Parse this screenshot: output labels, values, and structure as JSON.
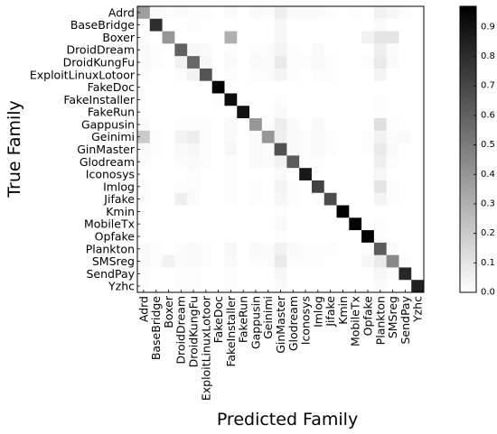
{
  "chart_data": {
    "type": "heatmap",
    "title": "",
    "xlabel": "Predicted Family",
    "ylabel": "True Family",
    "categories": [
      "Adrd",
      "BaseBridge",
      "Boxer",
      "DroidDream",
      "DroidKungFu",
      "ExploitLinuxLotoor",
      "FakeDoc",
      "FakeInstaller",
      "FakeRun",
      "Gappusin",
      "Geinimi",
      "GinMaster",
      "Glodream",
      "Iconosys",
      "Imlog",
      "Jifake",
      "Kmin",
      "MobileTx",
      "Opfake",
      "Plankton",
      "SMSreg",
      "SendPay",
      "Yzhc"
    ],
    "colorbar": {
      "min": 0.0,
      "max": 0.97,
      "ticks": [
        "0.0",
        "0.1",
        "0.2",
        "0.3",
        "0.4",
        "0.5",
        "0.6",
        "0.7",
        "0.8",
        "0.9"
      ]
    },
    "colormap": [
      "#ffffff",
      "#000000"
    ],
    "values": [
      [
        0.37,
        0.02,
        0.01,
        0.02,
        0.01,
        0.01,
        0.0,
        0.02,
        0.0,
        0.02,
        0.01,
        0.06,
        0.02,
        0.02,
        0.02,
        0.01,
        0.0,
        0.01,
        0.0,
        0.05,
        0.03,
        0.01,
        0.0
      ],
      [
        0.0,
        0.8,
        0.0,
        0.0,
        0.01,
        0.0,
        0.0,
        0.0,
        0.0,
        0.0,
        0.0,
        0.03,
        0.0,
        0.0,
        0.0,
        0.0,
        0.0,
        0.0,
        0.0,
        0.02,
        0.0,
        0.0,
        0.0
      ],
      [
        0.01,
        0.0,
        0.4,
        0.0,
        0.0,
        0.0,
        0.0,
        0.3,
        0.0,
        0.0,
        0.0,
        0.03,
        0.0,
        0.0,
        0.0,
        0.0,
        0.0,
        0.0,
        0.05,
        0.1,
        0.1,
        0.0,
        0.0
      ],
      [
        0.02,
        0.01,
        0.0,
        0.6,
        0.03,
        0.02,
        0.0,
        0.01,
        0.0,
        0.01,
        0.01,
        0.04,
        0.01,
        0.0,
        0.02,
        0.0,
        0.0,
        0.0,
        0.0,
        0.06,
        0.01,
        0.0,
        0.0
      ],
      [
        0.02,
        0.01,
        0.0,
        0.05,
        0.58,
        0.03,
        0.0,
        0.02,
        0.0,
        0.02,
        0.01,
        0.08,
        0.01,
        0.01,
        0.02,
        0.01,
        0.0,
        0.0,
        0.01,
        0.08,
        0.02,
        0.0,
        0.0
      ],
      [
        0.01,
        0.0,
        0.0,
        0.01,
        0.05,
        0.65,
        0.0,
        0.01,
        0.0,
        0.01,
        0.01,
        0.04,
        0.01,
        0.0,
        0.01,
        0.01,
        0.0,
        0.0,
        0.0,
        0.04,
        0.0,
        0.0,
        0.0
      ],
      [
        0.0,
        0.0,
        0.0,
        0.0,
        0.0,
        0.0,
        0.97,
        0.0,
        0.0,
        0.0,
        0.0,
        0.0,
        0.0,
        0.0,
        0.0,
        0.0,
        0.0,
        0.0,
        0.0,
        0.0,
        0.0,
        0.0,
        0.0
      ],
      [
        0.0,
        0.0,
        0.0,
        0.0,
        0.0,
        0.0,
        0.01,
        0.92,
        0.0,
        0.0,
        0.0,
        0.01,
        0.0,
        0.0,
        0.0,
        0.0,
        0.0,
        0.0,
        0.0,
        0.01,
        0.0,
        0.0,
        0.0
      ],
      [
        0.0,
        0.0,
        0.0,
        0.0,
        0.0,
        0.0,
        0.0,
        0.0,
        0.9,
        0.0,
        0.0,
        0.02,
        0.0,
        0.0,
        0.0,
        0.0,
        0.0,
        0.0,
        0.0,
        0.01,
        0.0,
        0.0,
        0.0
      ],
      [
        0.02,
        0.0,
        0.0,
        0.01,
        0.01,
        0.01,
        0.0,
        0.02,
        0.0,
        0.4,
        0.01,
        0.07,
        0.02,
        0.0,
        0.02,
        0.0,
        0.0,
        0.0,
        0.0,
        0.12,
        0.01,
        0.0,
        0.0
      ],
      [
        0.2,
        0.01,
        0.0,
        0.04,
        0.07,
        0.01,
        0.0,
        0.02,
        0.0,
        0.02,
        0.4,
        0.06,
        0.02,
        0.01,
        0.02,
        0.01,
        0.0,
        0.0,
        0.01,
        0.05,
        0.01,
        0.02,
        0.0
      ],
      [
        0.02,
        0.01,
        0.0,
        0.02,
        0.03,
        0.01,
        0.0,
        0.03,
        0.0,
        0.02,
        0.01,
        0.66,
        0.02,
        0.01,
        0.02,
        0.01,
        0.0,
        0.0,
        0.01,
        0.08,
        0.02,
        0.0,
        0.0
      ],
      [
        0.01,
        0.0,
        0.0,
        0.01,
        0.02,
        0.01,
        0.0,
        0.01,
        0.0,
        0.02,
        0.01,
        0.05,
        0.62,
        0.01,
        0.01,
        0.0,
        0.0,
        0.0,
        0.0,
        0.06,
        0.01,
        0.0,
        0.0
      ],
      [
        0.0,
        0.0,
        0.0,
        0.0,
        0.01,
        0.0,
        0.0,
        0.01,
        0.0,
        0.0,
        0.0,
        0.02,
        0.0,
        0.88,
        0.0,
        0.0,
        0.0,
        0.0,
        0.0,
        0.03,
        0.0,
        0.0,
        0.0
      ],
      [
        0.01,
        0.0,
        0.0,
        0.01,
        0.01,
        0.0,
        0.0,
        0.01,
        0.0,
        0.01,
        0.0,
        0.04,
        0.01,
        0.0,
        0.72,
        0.0,
        0.0,
        0.0,
        0.0,
        0.1,
        0.01,
        0.0,
        0.0
      ],
      [
        0.01,
        0.0,
        0.0,
        0.06,
        0.02,
        0.0,
        0.0,
        0.01,
        0.0,
        0.01,
        0.0,
        0.03,
        0.01,
        0.0,
        0.01,
        0.68,
        0.0,
        0.0,
        0.0,
        0.04,
        0.01,
        0.0,
        0.0
      ],
      [
        0.0,
        0.0,
        0.0,
        0.0,
        0.0,
        0.0,
        0.0,
        0.0,
        0.0,
        0.0,
        0.0,
        0.01,
        0.0,
        0.0,
        0.0,
        0.0,
        0.97,
        0.0,
        0.0,
        0.0,
        0.0,
        0.0,
        0.0
      ],
      [
        0.0,
        0.0,
        0.0,
        0.0,
        0.0,
        0.0,
        0.0,
        0.0,
        0.0,
        0.0,
        0.0,
        0.02,
        0.0,
        0.0,
        0.0,
        0.0,
        0.0,
        0.95,
        0.0,
        0.01,
        0.0,
        0.0,
        0.0
      ],
      [
        0.0,
        0.0,
        0.0,
        0.0,
        0.0,
        0.0,
        0.0,
        0.0,
        0.0,
        0.0,
        0.0,
        0.01,
        0.0,
        0.0,
        0.0,
        0.0,
        0.0,
        0.0,
        0.96,
        0.01,
        0.0,
        0.0,
        0.0
      ],
      [
        0.02,
        0.01,
        0.0,
        0.01,
        0.02,
        0.01,
        0.0,
        0.03,
        0.0,
        0.02,
        0.01,
        0.05,
        0.02,
        0.01,
        0.01,
        0.01,
        0.0,
        0.0,
        0.01,
        0.62,
        0.02,
        0.0,
        0.0
      ],
      [
        0.02,
        0.01,
        0.05,
        0.01,
        0.02,
        0.01,
        0.0,
        0.02,
        0.0,
        0.01,
        0.01,
        0.08,
        0.01,
        0.01,
        0.01,
        0.0,
        0.0,
        0.0,
        0.03,
        0.08,
        0.45,
        0.01,
        0.0
      ],
      [
        0.01,
        0.0,
        0.0,
        0.01,
        0.01,
        0.0,
        0.0,
        0.01,
        0.0,
        0.0,
        0.0,
        0.03,
        0.0,
        0.0,
        0.0,
        0.0,
        0.0,
        0.0,
        0.0,
        0.03,
        0.01,
        0.82,
        0.0
      ],
      [
        0.01,
        0.0,
        0.0,
        0.01,
        0.01,
        0.0,
        0.0,
        0.01,
        0.0,
        0.0,
        0.0,
        0.02,
        0.0,
        0.0,
        0.0,
        0.0,
        0.0,
        0.0,
        0.0,
        0.02,
        0.0,
        0.0,
        0.85
      ]
    ]
  }
}
